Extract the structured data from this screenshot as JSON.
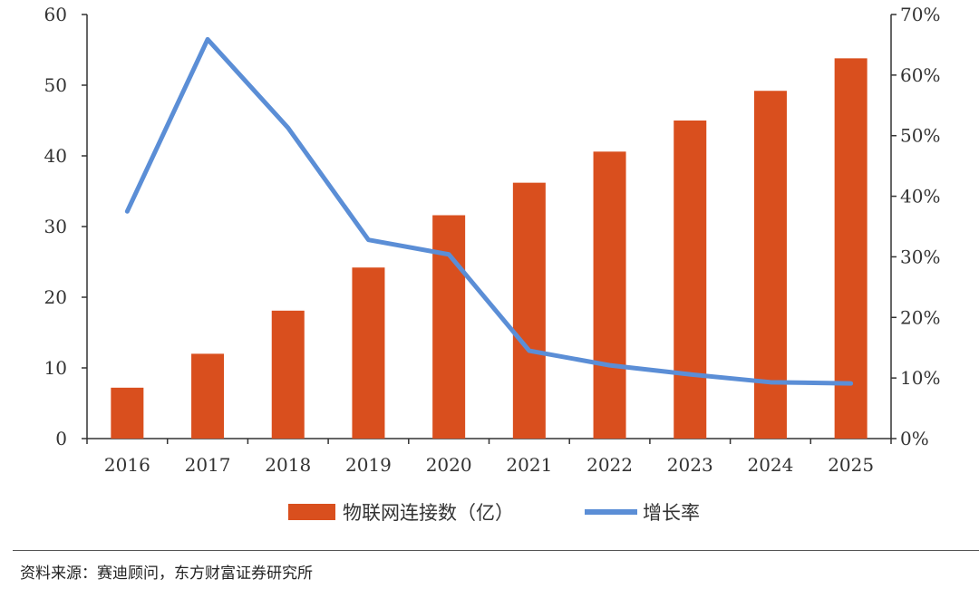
{
  "chart_data": {
    "type": "bar",
    "categories": [
      "2016",
      "2017",
      "2018",
      "2019",
      "2020",
      "2021",
      "2022",
      "2023",
      "2024",
      "2025"
    ],
    "series": [
      {
        "name": "物联网连接数（亿）",
        "type": "bar",
        "axis": "left",
        "color": "#d94f1e",
        "values": [
          7.2,
          12.0,
          18.1,
          24.2,
          31.6,
          36.2,
          40.6,
          45.0,
          49.2,
          53.8
        ]
      },
      {
        "name": "增长率",
        "type": "line",
        "axis": "right",
        "color": "#5b8ed6",
        "values": [
          37.5,
          65.9,
          51.3,
          32.8,
          30.4,
          14.5,
          12.1,
          10.6,
          9.3,
          9.1
        ]
      }
    ],
    "y_left": {
      "ylim": [
        0,
        60
      ],
      "ticks": [
        "0",
        "10",
        "20",
        "30",
        "40",
        "50",
        "60"
      ]
    },
    "y_right": {
      "ylim": [
        0,
        70
      ],
      "ticks": [
        "0%",
        "10%",
        "20%",
        "30%",
        "40%",
        "50%",
        "60%",
        "70%"
      ]
    },
    "legend": {
      "position": "bottom",
      "items": [
        "物联网连接数（亿）",
        "增长率"
      ]
    },
    "title": "",
    "xlabel": "",
    "ylabel": ""
  },
  "source": {
    "text": "资料来源：赛迪顾问，东方财富证券研究所"
  }
}
